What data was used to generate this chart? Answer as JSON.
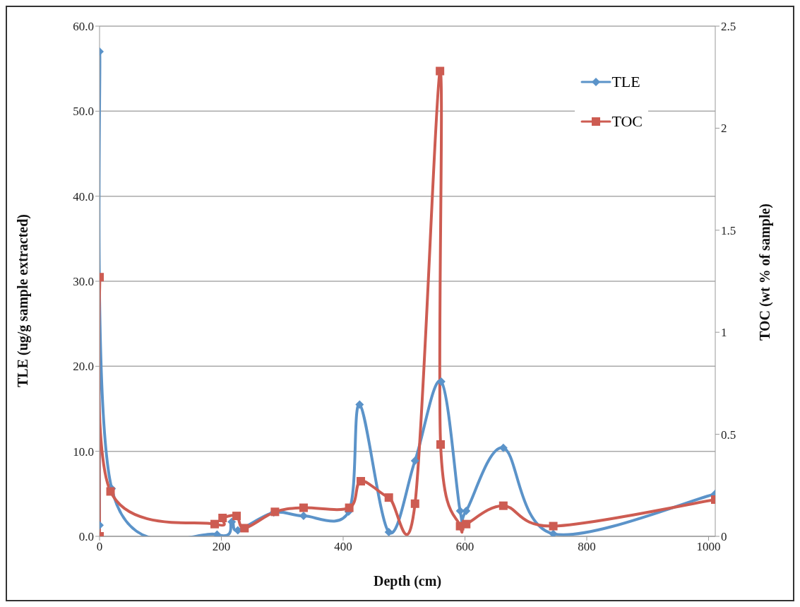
{
  "chart_data": {
    "type": "line",
    "xlabel": "Depth (cm)",
    "ylabel": "TLE (ug/g sample extracted)",
    "y2label": "TOC (wt % of sample)",
    "xlim": [
      0,
      1011
    ],
    "xticks": [
      0,
      200,
      400,
      600,
      800,
      1000
    ],
    "ylim": [
      0,
      60
    ],
    "yticks": [
      {
        "value": 0,
        "label": "0.0"
      },
      {
        "value": 10,
        "label": "10.0"
      },
      {
        "value": 20,
        "label": "20.0"
      },
      {
        "value": 30,
        "label": "30.0"
      },
      {
        "value": 40,
        "label": "40.0"
      },
      {
        "value": 50,
        "label": "50.0"
      },
      {
        "value": 60,
        "label": "60.0"
      }
    ],
    "y2lim": [
      0,
      2.5
    ],
    "y2ticks": [
      0,
      0.5,
      1,
      1.5,
      2,
      2.5
    ],
    "grid": "y",
    "legend": "top right",
    "line_style": "solid",
    "series": [
      {
        "name": "TLE",
        "color": "#5b93c9",
        "marker": "diamond",
        "x": [
          0,
          0,
          20,
          193,
          217,
          227,
          286,
          335,
          409,
          427,
          475,
          518,
          561,
          592,
          602,
          663,
          745,
          1011
        ],
        "values": [
          1.3,
          57.0,
          5.6,
          0.2,
          1.7,
          0.7,
          2.8,
          2.4,
          2.9,
          15.5,
          0.5,
          8.9,
          18.2,
          3.0,
          3.0,
          10.4,
          0.3,
          5.0
        ]
      },
      {
        "name": "TOC",
        "color": "#cd5c52",
        "marker": "square",
        "axis": "y2",
        "x": [
          0,
          0,
          18,
          189,
          202,
          225,
          238,
          288,
          335,
          410,
          429,
          475,
          518,
          559,
          560,
          592,
          602,
          663,
          745,
          1011
        ],
        "values": [
          0.0,
          1.27,
          0.22,
          0.06,
          0.09,
          0.1,
          0.04,
          0.12,
          0.14,
          0.14,
          0.27,
          0.19,
          0.16,
          2.28,
          0.45,
          0.05,
          0.06,
          0.15,
          0.05,
          0.18
        ]
      }
    ]
  }
}
